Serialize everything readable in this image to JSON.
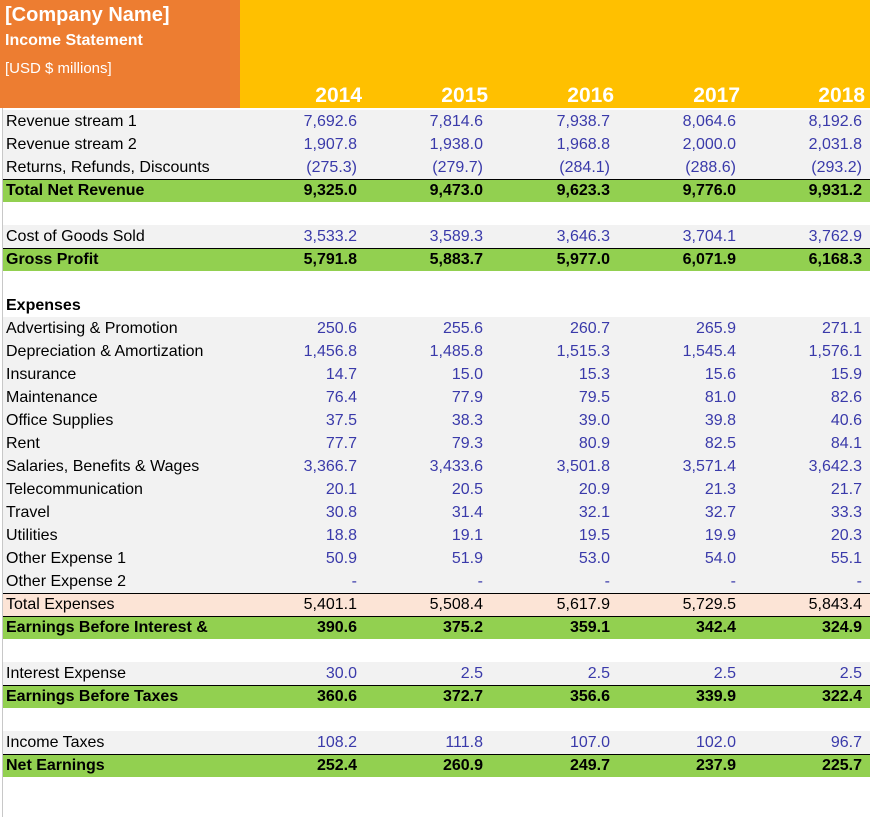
{
  "header": {
    "company": "[Company Name]",
    "statement": "Income Statement",
    "units": "[USD $ millions]",
    "years": [
      "2014",
      "2015",
      "2016",
      "2017",
      "2018"
    ]
  },
  "colors": {
    "orange": "#ed7d31",
    "yellow": "#ffc000",
    "green": "#92d050",
    "peach": "#fce4d6",
    "blue": "#3a3aaa"
  },
  "rows": [
    {
      "type": "data",
      "label": "Revenue stream 1",
      "values": [
        "7,692.6",
        "7,814.6",
        "7,938.7",
        "8,064.6",
        "8,192.6"
      ]
    },
    {
      "type": "data",
      "label": "Revenue stream 2",
      "values": [
        "1,907.8",
        "1,938.0",
        "1,968.8",
        "2,000.0",
        "2,031.8"
      ]
    },
    {
      "type": "data",
      "label": "Returns, Refunds, Discounts",
      "values": [
        "(275.3)",
        "(279.7)",
        "(284.1)",
        "(288.6)",
        "(293.2)"
      ]
    },
    {
      "type": "total",
      "label": "Total Net Revenue",
      "values": [
        "9,325.0",
        "9,473.0",
        "9,623.3",
        "9,776.0",
        "9,931.2"
      ]
    },
    {
      "type": "blank"
    },
    {
      "type": "data",
      "label": "Cost of Goods Sold",
      "values": [
        "3,533.2",
        "3,589.3",
        "3,646.3",
        "3,704.1",
        "3,762.9"
      ]
    },
    {
      "type": "total",
      "label": "Gross Profit",
      "values": [
        "5,791.8",
        "5,883.7",
        "5,977.0",
        "6,071.9",
        "6,168.3"
      ]
    },
    {
      "type": "blank"
    },
    {
      "type": "heading",
      "label": "Expenses"
    },
    {
      "type": "data",
      "label": "Advertising & Promotion",
      "values": [
        "250.6",
        "255.6",
        "260.7",
        "265.9",
        "271.1"
      ]
    },
    {
      "type": "data",
      "label": "Depreciation & Amortization",
      "values": [
        "1,456.8",
        "1,485.8",
        "1,515.3",
        "1,545.4",
        "1,576.1"
      ]
    },
    {
      "type": "data",
      "label": "Insurance",
      "values": [
        "14.7",
        "15.0",
        "15.3",
        "15.6",
        "15.9"
      ]
    },
    {
      "type": "data",
      "label": "Maintenance",
      "values": [
        "76.4",
        "77.9",
        "79.5",
        "81.0",
        "82.6"
      ]
    },
    {
      "type": "data",
      "label": "Office Supplies",
      "values": [
        "37.5",
        "38.3",
        "39.0",
        "39.8",
        "40.6"
      ]
    },
    {
      "type": "data",
      "label": "Rent",
      "values": [
        "77.7",
        "79.3",
        "80.9",
        "82.5",
        "84.1"
      ]
    },
    {
      "type": "data",
      "label": "Salaries, Benefits & Wages",
      "values": [
        "3,366.7",
        "3,433.6",
        "3,501.8",
        "3,571.4",
        "3,642.3"
      ]
    },
    {
      "type": "data",
      "label": "Telecommunication",
      "values": [
        "20.1",
        "20.5",
        "20.9",
        "21.3",
        "21.7"
      ]
    },
    {
      "type": "data",
      "label": "Travel",
      "values": [
        "30.8",
        "31.4",
        "32.1",
        "32.7",
        "33.3"
      ]
    },
    {
      "type": "data",
      "label": "Utilities",
      "values": [
        "18.8",
        "19.1",
        "19.5",
        "19.9",
        "20.3"
      ]
    },
    {
      "type": "data",
      "label": "Other Expense 1",
      "values": [
        "50.9",
        "51.9",
        "53.0",
        "54.0",
        "55.1"
      ]
    },
    {
      "type": "data",
      "label": "Other Expense 2",
      "values": [
        "-",
        "-",
        "-",
        "-",
        "-"
      ]
    },
    {
      "type": "totexp",
      "label": "Total Expenses",
      "values": [
        "5,401.1",
        "5,508.4",
        "5,617.9",
        "5,729.5",
        "5,843.4"
      ]
    },
    {
      "type": "total",
      "label": "Earnings Before Interest &",
      "values": [
        "390.6",
        "375.2",
        "359.1",
        "342.4",
        "324.9"
      ]
    },
    {
      "type": "blank"
    },
    {
      "type": "data",
      "label": "Interest Expense",
      "values": [
        "30.0",
        "2.5",
        "2.5",
        "2.5",
        "2.5"
      ]
    },
    {
      "type": "total",
      "label": "Earnings Before Taxes",
      "values": [
        "360.6",
        "372.7",
        "356.6",
        "339.9",
        "322.4"
      ]
    },
    {
      "type": "blank"
    },
    {
      "type": "data",
      "label": "Income Taxes",
      "values": [
        "108.2",
        "111.8",
        "107.0",
        "102.0",
        "96.7"
      ]
    },
    {
      "type": "total",
      "label": "Net Earnings",
      "values": [
        "252.4",
        "260.9",
        "249.7",
        "237.9",
        "225.7"
      ]
    }
  ]
}
